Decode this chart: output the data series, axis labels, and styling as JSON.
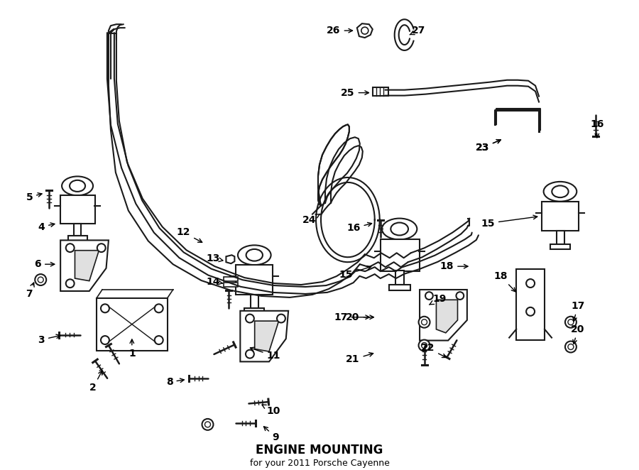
{
  "title": "ENGINE MOUNTING",
  "subtitle": "for your 2011 Porsche Cayenne",
  "bg_color": "#ffffff",
  "line_color": "#1a1a1a",
  "fig_width": 9.0,
  "fig_height": 6.62,
  "dpi": 100,
  "xlim": [
    0,
    900
  ],
  "ylim": [
    0,
    662
  ]
}
